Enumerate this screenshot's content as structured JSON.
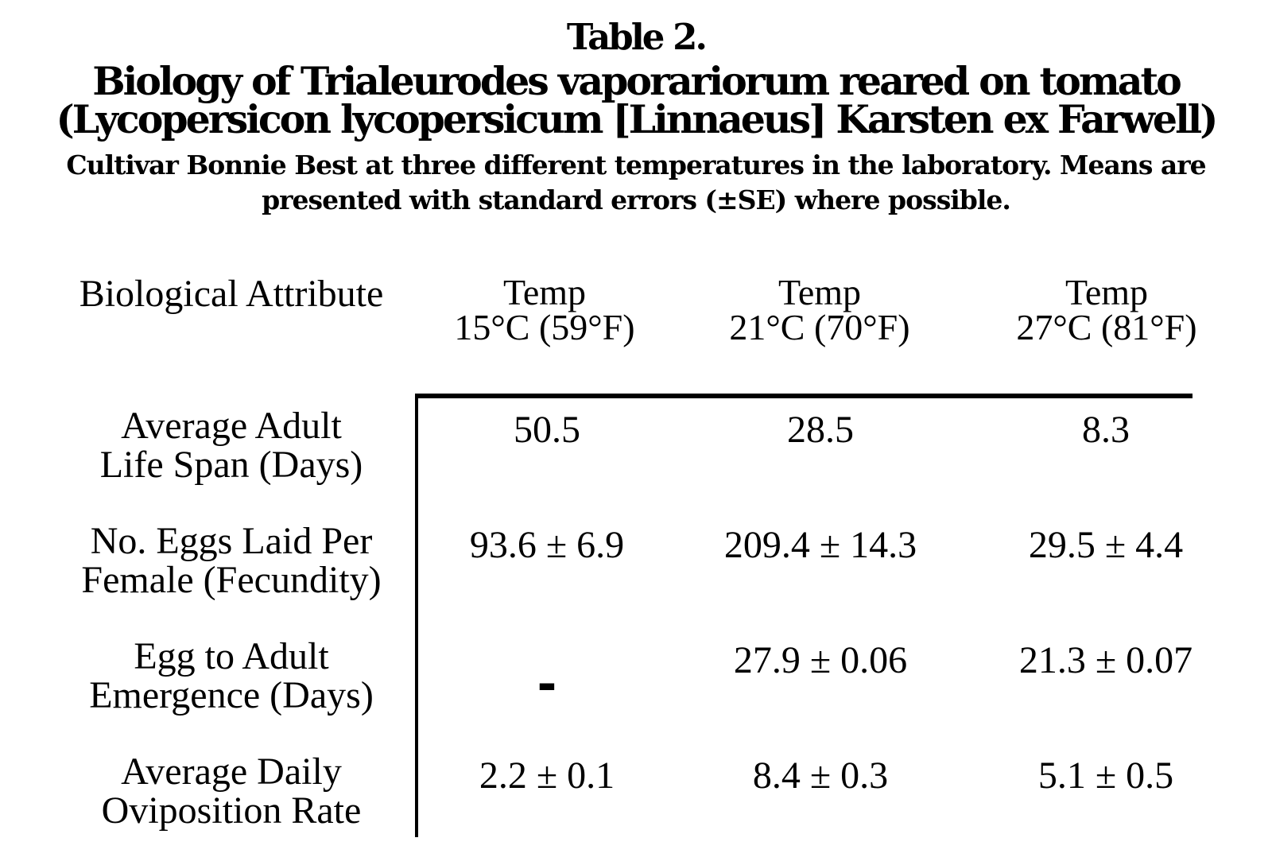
{
  "heading": {
    "table_number": "Table 2.",
    "title_line1": "Biology of Trialeurodes vaporariorum reared on tomato",
    "title_line2": "(Lycopersicon lycopersicum [Linnaeus] Karsten ex Farwell)",
    "caption_line1": "Cultivar Bonnie Best at three different temperatures in the laboratory. Means are",
    "caption_line2": "presented with standard errors (±SE) where possible."
  },
  "table": {
    "attribute_header": "Biological Attribute",
    "columns": [
      {
        "line1": "Temp",
        "line2": "15°C (59°F)"
      },
      {
        "line1": "Temp",
        "line2": "21°C (70°F)"
      },
      {
        "line1": "Temp",
        "line2": "27°C (81°F)"
      }
    ],
    "rows": [
      {
        "label_line1": "Average Adult",
        "label_line2": "Life Span (Days)",
        "values": [
          "50.5",
          "28.5",
          "8.3"
        ]
      },
      {
        "label_line1": "No. Eggs Laid Per",
        "label_line2": "Female (Fecundity)",
        "values": [
          "93.6 ± 6.9",
          "209.4 ± 14.3",
          "29.5 ± 4.4"
        ]
      },
      {
        "label_line1": "Egg to Adult",
        "label_line2": "Emergence (Days)",
        "values": [
          "-",
          "27.9 ± 0.06",
          "21.3 ± 0.07"
        ]
      },
      {
        "label_line1": "Average Daily",
        "label_line2": "Oviposition Rate",
        "values": [
          "2.2 ± 0.1",
          "8.4 ± 0.3",
          "5.1 ± 0.5"
        ]
      }
    ]
  },
  "colors": {
    "background": "#ffffff",
    "ink": "#000000",
    "rule": "#000000"
  }
}
